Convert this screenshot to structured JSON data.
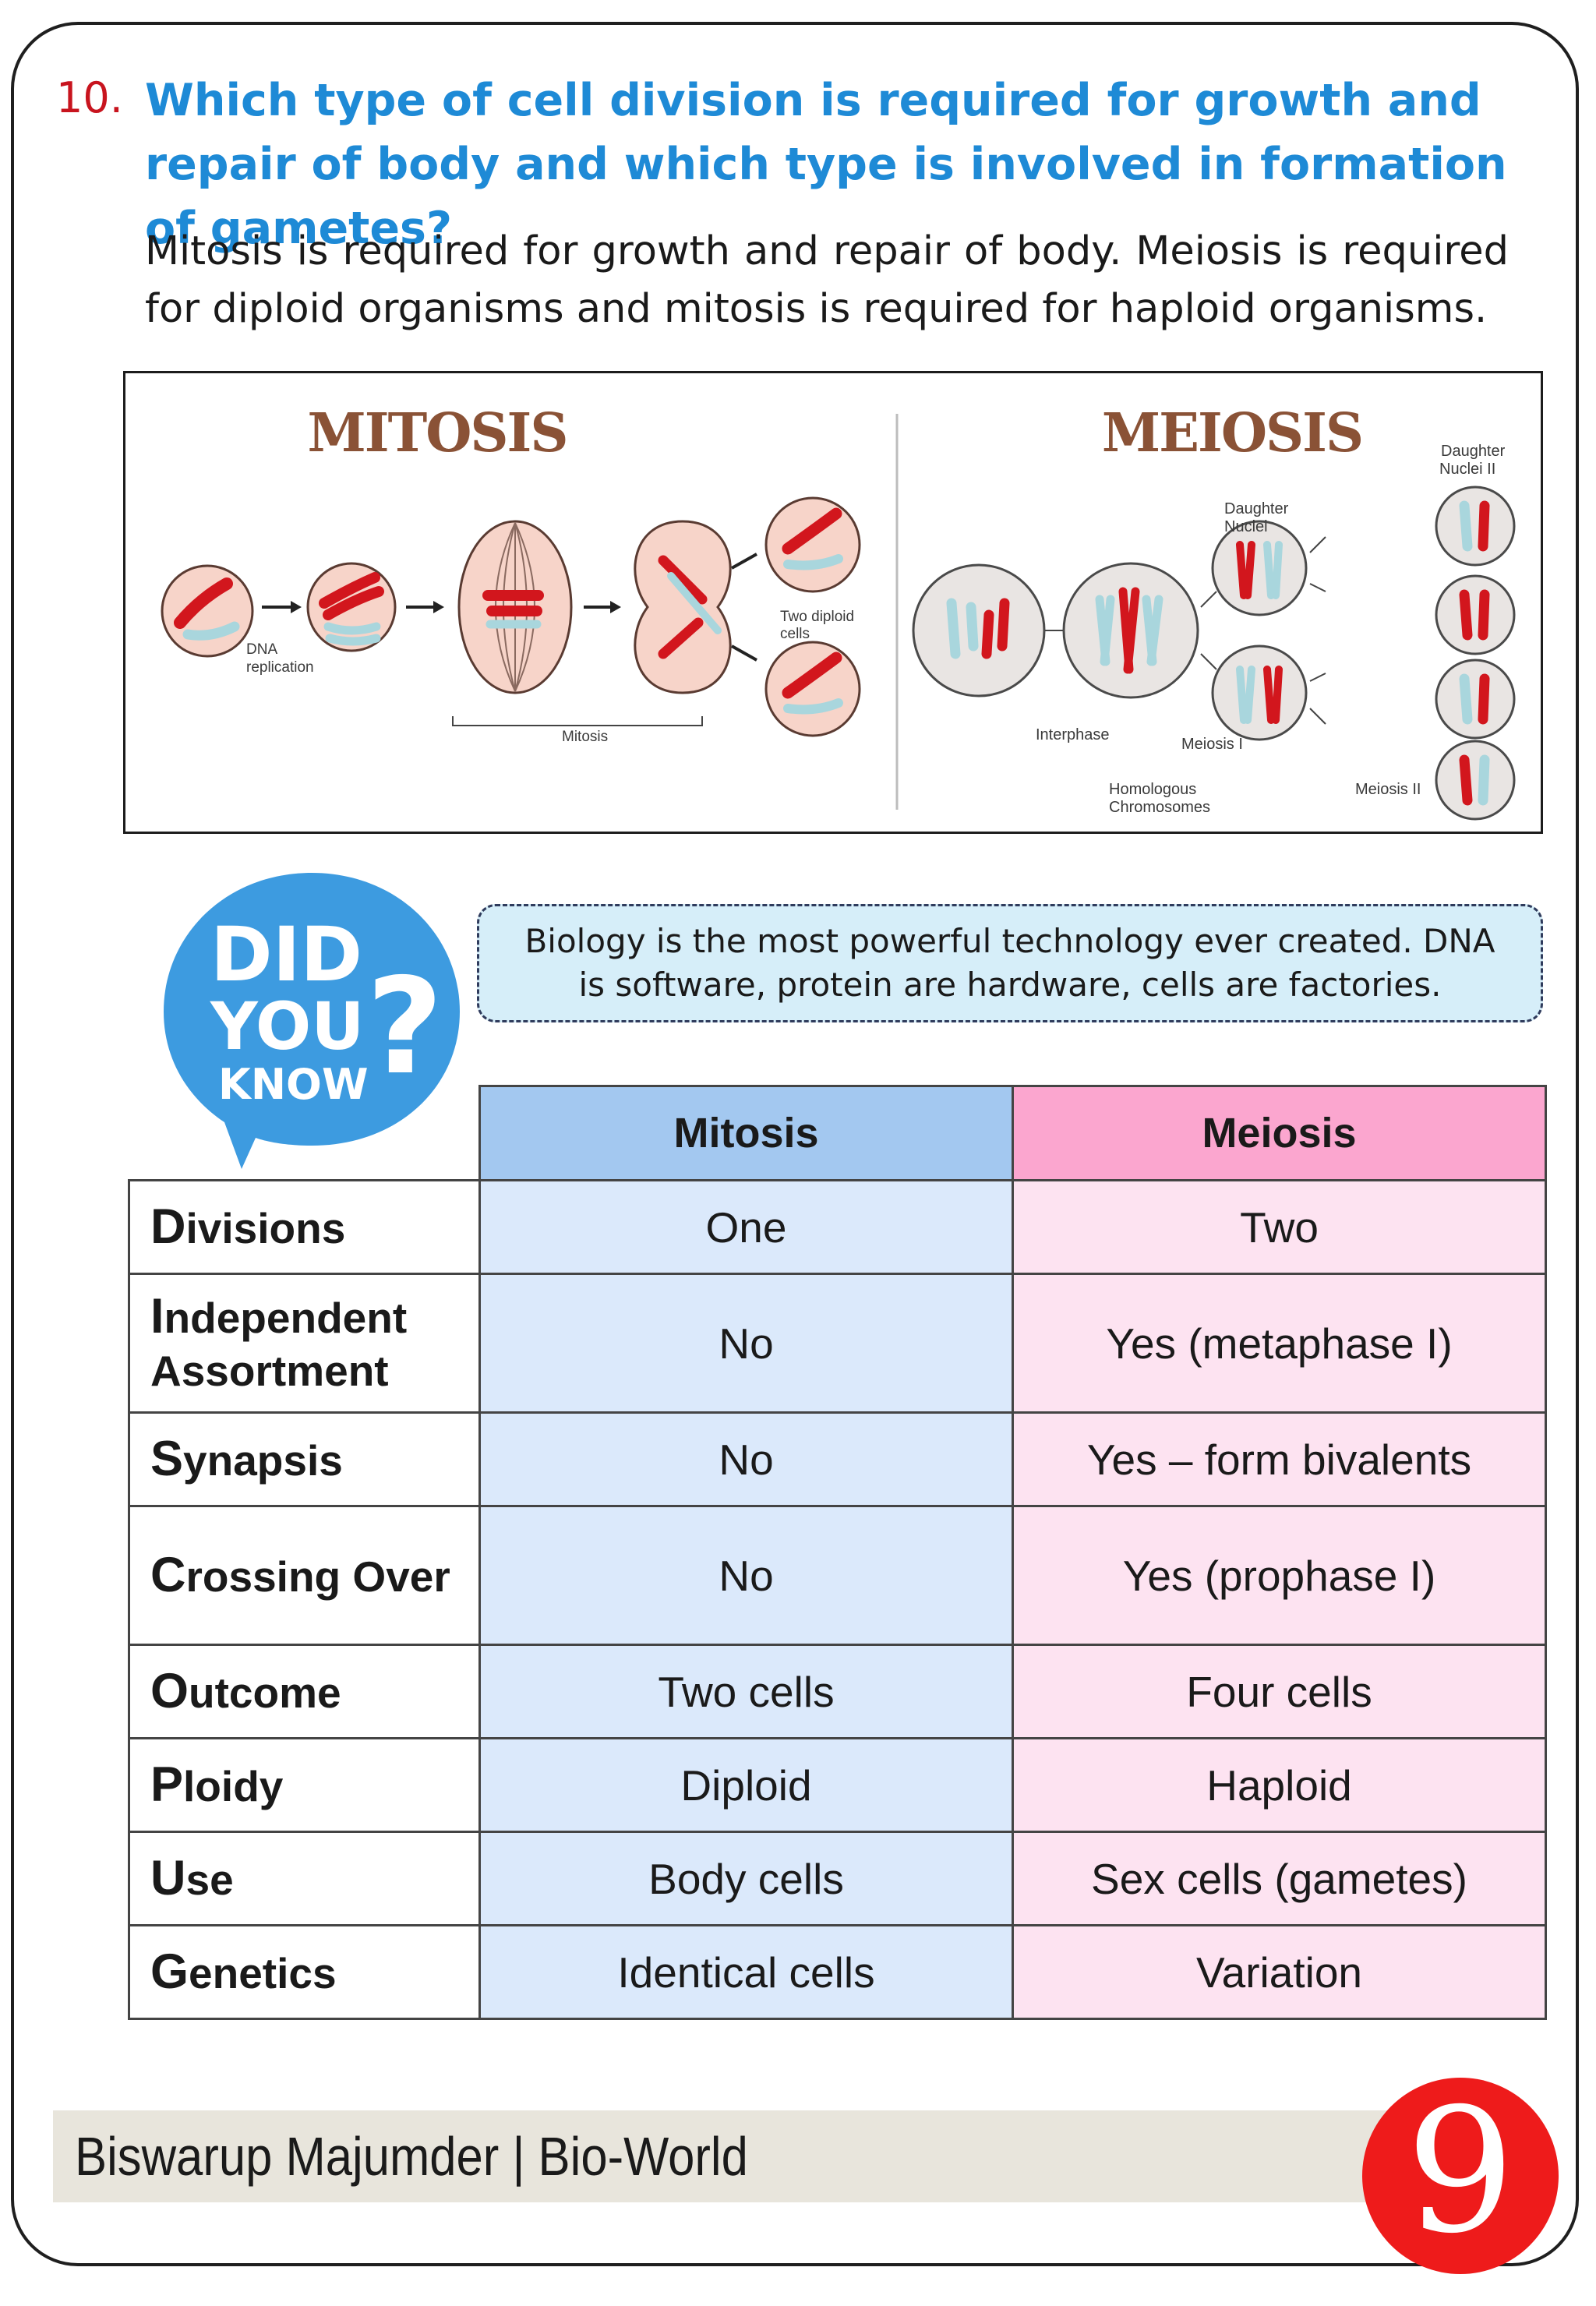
{
  "question": {
    "number": "10.",
    "text": "Which type of cell division is required for growth and repair of body and which type is involved in formation of gametes?",
    "answer": "Mitosis is required for growth and repair of body. Meiosis is required for diploid organisms and mitosis is required for haploid organisms."
  },
  "figure": {
    "mitosis_title": "MITOSIS",
    "meiosis_title": "MEIOSIS",
    "labels": {
      "dna_replication_1": "DNA",
      "dna_replication_2": "replication",
      "mitosis": "Mitosis",
      "two_diploid_1": "Two diploid",
      "two_diploid_2": "cells",
      "interphase": "Interphase",
      "homologous_1": "Homologous",
      "homologous_2": "Chromosomes",
      "meiosis_1": "Meiosis I",
      "meiosis_2": "Meiosis II",
      "daughter_nuclei_1": "Daughter",
      "daughter_nuclei_2": "Nuclei",
      "daughter_nuclei2_1": "Daughter",
      "daughter_nuclei2_2": "Nuclei II"
    }
  },
  "did_you_know": {
    "badge": {
      "line1": "DID",
      "line2": "YOU",
      "line3": "KNOW",
      "mark": "?"
    },
    "fact": "Biology is the most powerful technology ever created. DNA is software, protein are hardware, cells are factories."
  },
  "comparison": {
    "headers": [
      "Mitosis",
      "Meiosis"
    ],
    "rows": [
      {
        "first": "D",
        "rest": "ivisions",
        "mitosis": "One",
        "meiosis": "Two"
      },
      {
        "first": "I",
        "rest": "ndependent Assortment",
        "mitosis": "No",
        "meiosis": "Yes (metaphase I)"
      },
      {
        "first": "S",
        "rest": "ynapsis",
        "mitosis": "No",
        "meiosis": "Yes – form bivalents"
      },
      {
        "first": "C",
        "rest": "rossing Over",
        "mitosis": "No",
        "meiosis": "Yes (prophase I)"
      },
      {
        "first": "O",
        "rest": "utcome",
        "mitosis": "Two cells",
        "meiosis": "Four cells"
      },
      {
        "first": "P",
        "rest": "loidy",
        "mitosis": "Diploid",
        "meiosis": "Haploid"
      },
      {
        "first": "U",
        "rest": "se",
        "mitosis": "Body cells",
        "meiosis": "Sex cells (gametes)"
      },
      {
        "first": "G",
        "rest": "enetics",
        "mitosis": "Identical cells",
        "meiosis": "Variation"
      }
    ]
  },
  "footer": {
    "credit": "Biswarup Majumder | Bio-World",
    "page_number": "9"
  },
  "colors": {
    "question_blue": "#1e8ad6",
    "number_red": "#c8141e",
    "mitosis_header": "#a3c8f0",
    "meiosis_header": "#fba6cf",
    "mitosis_cell": "#dbe9fb",
    "meiosis_cell": "#fde3f1",
    "badge_blue": "#3d9be0",
    "page_badge_red": "#ee1b1b"
  }
}
